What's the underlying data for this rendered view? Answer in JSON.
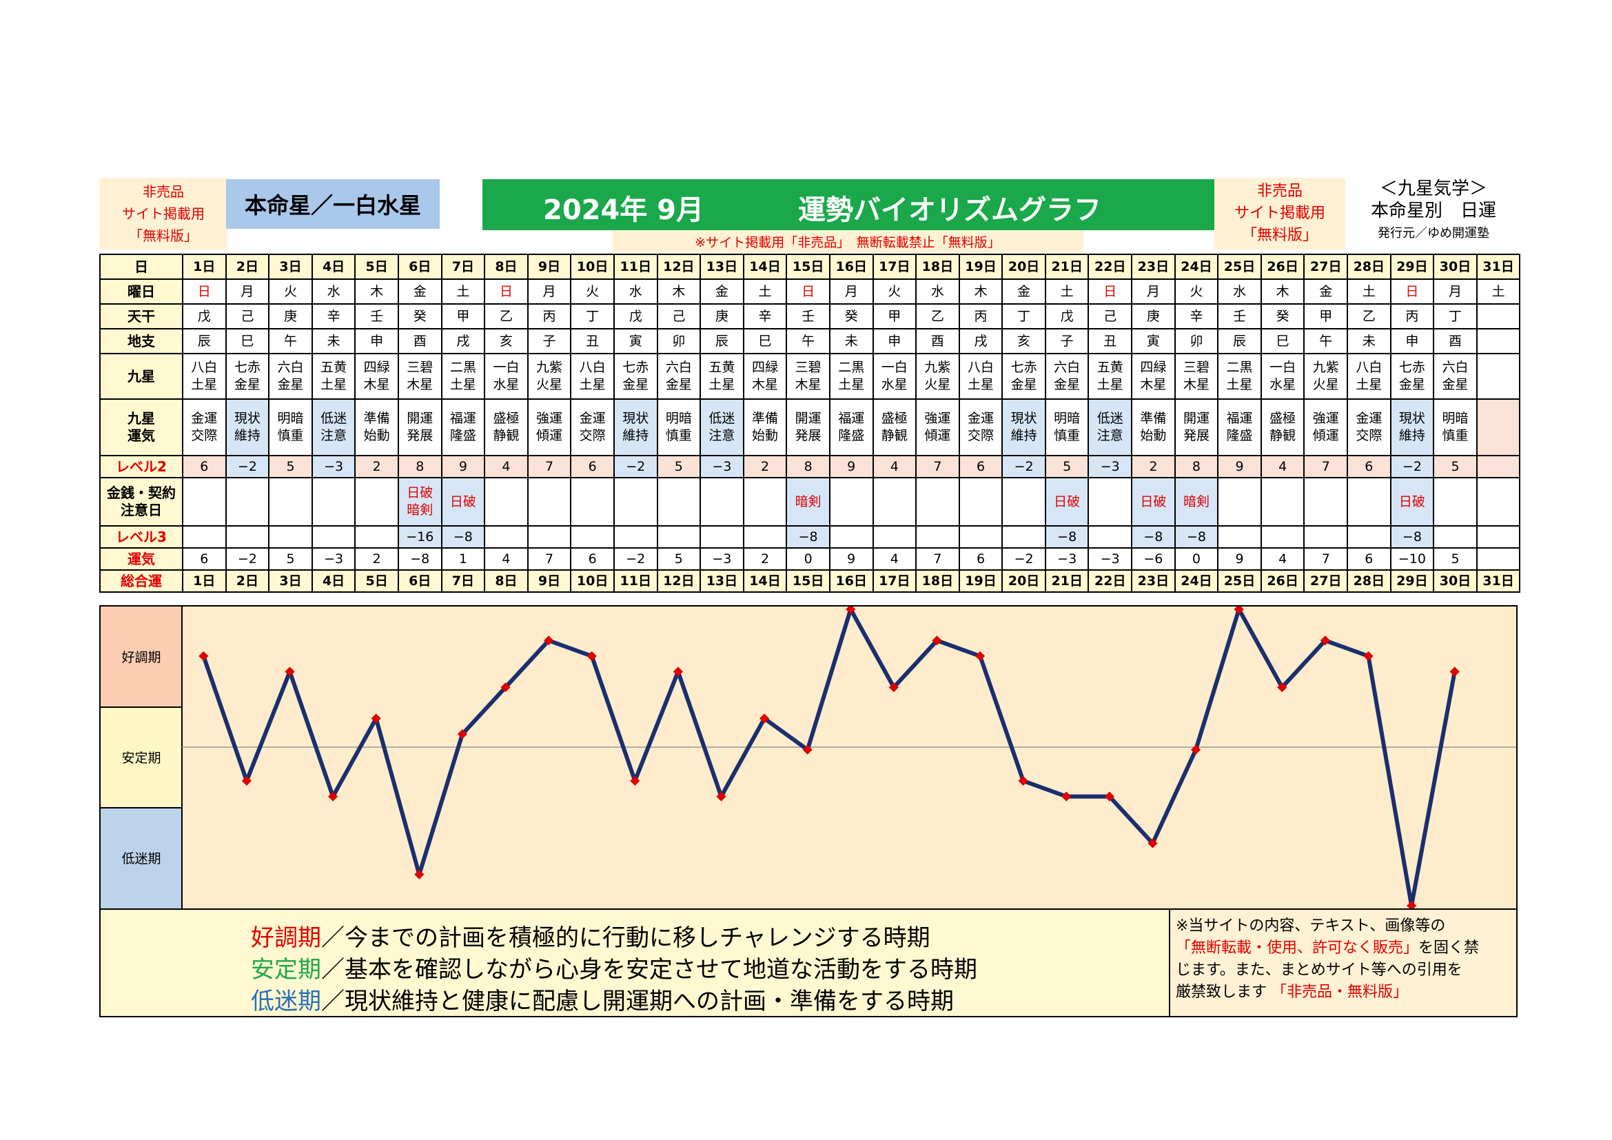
{
  "header": {
    "left_notice": [
      "非売品",
      "サイト掲載用",
      "「無料版」"
    ],
    "honmei": "本命星／一白水星",
    "title_year": "2024年 9月",
    "title_main": "運勢バイオリズムグラフ",
    "right_notice": [
      "非売品",
      "サイト掲載用",
      "「無料版」"
    ],
    "kyusei_title": "＜九星気学＞",
    "kyusei_sub": "本命星別　日運",
    "publisher": "発行元／ゆめ開運塾",
    "middle_notice": "※サイト掲載用「非売品」　無断転載禁止「無料版」"
  },
  "row_labels": {
    "day": "日",
    "weekday": "曜日",
    "tenkan": "天干",
    "chishi": "地支",
    "kyusei": "九星",
    "unki": [
      "九星",
      "運気"
    ],
    "level2": "レベル2",
    "money": [
      "金銭・契約",
      "注意日"
    ],
    "level3": "レベル3",
    "total": [
      "運気",
      "総合運"
    ]
  },
  "days": [
    "1日",
    "2日",
    "3日",
    "4日",
    "5日",
    "6日",
    "7日",
    "8日",
    "9日",
    "10日",
    "11日",
    "12日",
    "13日",
    "14日",
    "15日",
    "16日",
    "17日",
    "18日",
    "19日",
    "20日",
    "21日",
    "22日",
    "23日",
    "24日",
    "25日",
    "26日",
    "27日",
    "28日",
    "29日",
    "30日",
    "31日"
  ],
  "weekdays": [
    "日",
    "月",
    "火",
    "水",
    "木",
    "金",
    "土",
    "日",
    "月",
    "火",
    "水",
    "木",
    "金",
    "土",
    "日",
    "月",
    "火",
    "水",
    "木",
    "金",
    "土",
    "日",
    "月",
    "火",
    "水",
    "木",
    "金",
    "土",
    "日",
    "月",
    "土"
  ],
  "weekday_red": [
    0,
    7,
    14,
    21,
    28
  ],
  "tenkan": [
    "戊",
    "己",
    "庚",
    "辛",
    "壬",
    "癸",
    "甲",
    "乙",
    "丙",
    "丁",
    "戊",
    "己",
    "庚",
    "辛",
    "壬",
    "癸",
    "甲",
    "乙",
    "丙",
    "丁",
    "戊",
    "己",
    "庚",
    "辛",
    "壬",
    "癸",
    "甲",
    "乙",
    "丙",
    "丁",
    ""
  ],
  "chishi": [
    "辰",
    "巳",
    "午",
    "未",
    "申",
    "酉",
    "戌",
    "亥",
    "子",
    "丑",
    "寅",
    "卯",
    "辰",
    "巳",
    "午",
    "未",
    "申",
    "酉",
    "戌",
    "亥",
    "子",
    "丑",
    "寅",
    "卯",
    "辰",
    "巳",
    "午",
    "未",
    "申",
    "酉",
    ""
  ],
  "kyusei": [
    [
      "八白",
      "土星"
    ],
    [
      "七赤",
      "金星"
    ],
    [
      "六白",
      "金星"
    ],
    [
      "五黄",
      "土星"
    ],
    [
      "四緑",
      "木星"
    ],
    [
      "三碧",
      "木星"
    ],
    [
      "二黒",
      "土星"
    ],
    [
      "一白",
      "水星"
    ],
    [
      "九紫",
      "火星"
    ],
    [
      "八白",
      "土星"
    ],
    [
      "七赤",
      "金星"
    ],
    [
      "六白",
      "金星"
    ],
    [
      "五黄",
      "土星"
    ],
    [
      "四緑",
      "木星"
    ],
    [
      "三碧",
      "木星"
    ],
    [
      "二黒",
      "土星"
    ],
    [
      "一白",
      "水星"
    ],
    [
      "九紫",
      "火星"
    ],
    [
      "八白",
      "土星"
    ],
    [
      "七赤",
      "金星"
    ],
    [
      "六白",
      "金星"
    ],
    [
      "五黄",
      "土星"
    ],
    [
      "四緑",
      "木星"
    ],
    [
      "三碧",
      "木星"
    ],
    [
      "二黒",
      "土星"
    ],
    [
      "一白",
      "水星"
    ],
    [
      "九紫",
      "火星"
    ],
    [
      "八白",
      "土星"
    ],
    [
      "七赤",
      "金星"
    ],
    [
      "六白",
      "金星"
    ],
    [
      "",
      ""
    ]
  ],
  "unki": [
    [
      "金運",
      "交際"
    ],
    [
      "現状",
      "維持"
    ],
    [
      "明暗",
      "慎重"
    ],
    [
      "低迷",
      "注意"
    ],
    [
      "準備",
      "始動"
    ],
    [
      "開運",
      "発展"
    ],
    [
      "福運",
      "隆盛"
    ],
    [
      "盛極",
      "静観"
    ],
    [
      "強運",
      "傾運"
    ],
    [
      "金運",
      "交際"
    ],
    [
      "現状",
      "維持"
    ],
    [
      "明暗",
      "慎重"
    ],
    [
      "低迷",
      "注意"
    ],
    [
      "準備",
      "始動"
    ],
    [
      "開運",
      "発展"
    ],
    [
      "福運",
      "隆盛"
    ],
    [
      "盛極",
      "静観"
    ],
    [
      "強運",
      "傾運"
    ],
    [
      "金運",
      "交際"
    ],
    [
      "現状",
      "維持"
    ],
    [
      "明暗",
      "慎重"
    ],
    [
      "低迷",
      "注意"
    ],
    [
      "準備",
      "始動"
    ],
    [
      "開運",
      "発展"
    ],
    [
      "福運",
      "隆盛"
    ],
    [
      "盛極",
      "静観"
    ],
    [
      "強運",
      "傾運"
    ],
    [
      "金運",
      "交際"
    ],
    [
      "現状",
      "維持"
    ],
    [
      "明暗",
      "慎重"
    ],
    [
      "",
      ""
    ]
  ],
  "level2": [
    "6",
    "−2",
    "5",
    "−3",
    "2",
    "8",
    "9",
    "4",
    "7",
    "6",
    "−2",
    "5",
    "−3",
    "2",
    "8",
    "9",
    "4",
    "7",
    "6",
    "−2",
    "5",
    "−3",
    "2",
    "8",
    "9",
    "4",
    "7",
    "6",
    "−2",
    "5",
    ""
  ],
  "money": [
    [],
    [],
    [],
    [],
    [],
    [
      "日破",
      "暗剣"
    ],
    [
      "日破"
    ],
    [],
    [],
    [],
    [],
    [],
    [],
    [],
    [
      "暗剣"
    ],
    [],
    [],
    [],
    [],
    [],
    [
      "日破"
    ],
    [],
    [
      "日破"
    ],
    [
      "暗剣"
    ],
    [],
    [],
    [],
    [],
    [
      "日破"
    ],
    [],
    []
  ],
  "level3": [
    "",
    "",
    "",
    "",
    "",
    "−16",
    "−8",
    "",
    "",
    "",
    "",
    "",
    "",
    "",
    "−8",
    "",
    "",
    "",
    "",
    "",
    "−8",
    "",
    "−8",
    "−8",
    "",
    "",
    "",
    "",
    "−8",
    "",
    ""
  ],
  "total": [
    "6",
    "−2",
    "5",
    "−3",
    "2",
    "−8",
    "1",
    "4",
    "7",
    "6",
    "−2",
    "5",
    "−3",
    "2",
    "0",
    "9",
    "4",
    "7",
    "6",
    "−2",
    "−3",
    "−3",
    "−6",
    "0",
    "9",
    "4",
    "7",
    "6",
    "−10",
    "5",
    ""
  ],
  "chart_labels": {
    "good": "好調期",
    "stable": "安定期",
    "low": "低迷期"
  },
  "chart_data": {
    "type": "line",
    "x": [
      "1日",
      "2日",
      "3日",
      "4日",
      "5日",
      "6日",
      "7日",
      "8日",
      "9日",
      "10日",
      "11日",
      "12日",
      "13日",
      "14日",
      "15日",
      "16日",
      "17日",
      "18日",
      "19日",
      "20日",
      "21日",
      "22日",
      "23日",
      "24日",
      "25日",
      "26日",
      "27日",
      "28日",
      "29日",
      "30日"
    ],
    "series": [
      {
        "values": [
          6,
          -2,
          5,
          -3,
          2,
          -8,
          1,
          4,
          7,
          6,
          -2,
          5,
          -3,
          2,
          0,
          9,
          4,
          7,
          6,
          -2,
          -3,
          -3,
          -6,
          0,
          9,
          4,
          7,
          6,
          -10,
          5
        ]
      }
    ],
    "ylim": [
      -10,
      9
    ],
    "line_color": "#1a2f6e",
    "marker_color": "#e00000"
  },
  "legend": {
    "good_term": "好調期",
    "good_text": "／今までの計画を積極的に行動に移しチャレンジする時期",
    "stable_term": "安定期",
    "stable_text": "／基本を確認しながら心身を安定させて地道な活動をする時期",
    "low_term": "低迷期",
    "low_text": "／現状維持と健康に配慮し開運期への計画・準備をする時期",
    "note_line1": "※当サイトの内容、テキスト、画像等の",
    "note_red": "「無断転載・使用、許可なく販売」",
    "note_mid": "を固く禁",
    "note_line3": "じます。また、まとめサイト等への引用を",
    "note_line4a": "厳禁致します",
    "note_line4b": "「非売品・無料版」"
  },
  "colors": {
    "good_term": "#e00000",
    "stable_term": "#1fa84a",
    "low_term": "#2a6fb8",
    "title_bg": "#1aa84a",
    "honmei_bg": "#a9c8ea"
  }
}
